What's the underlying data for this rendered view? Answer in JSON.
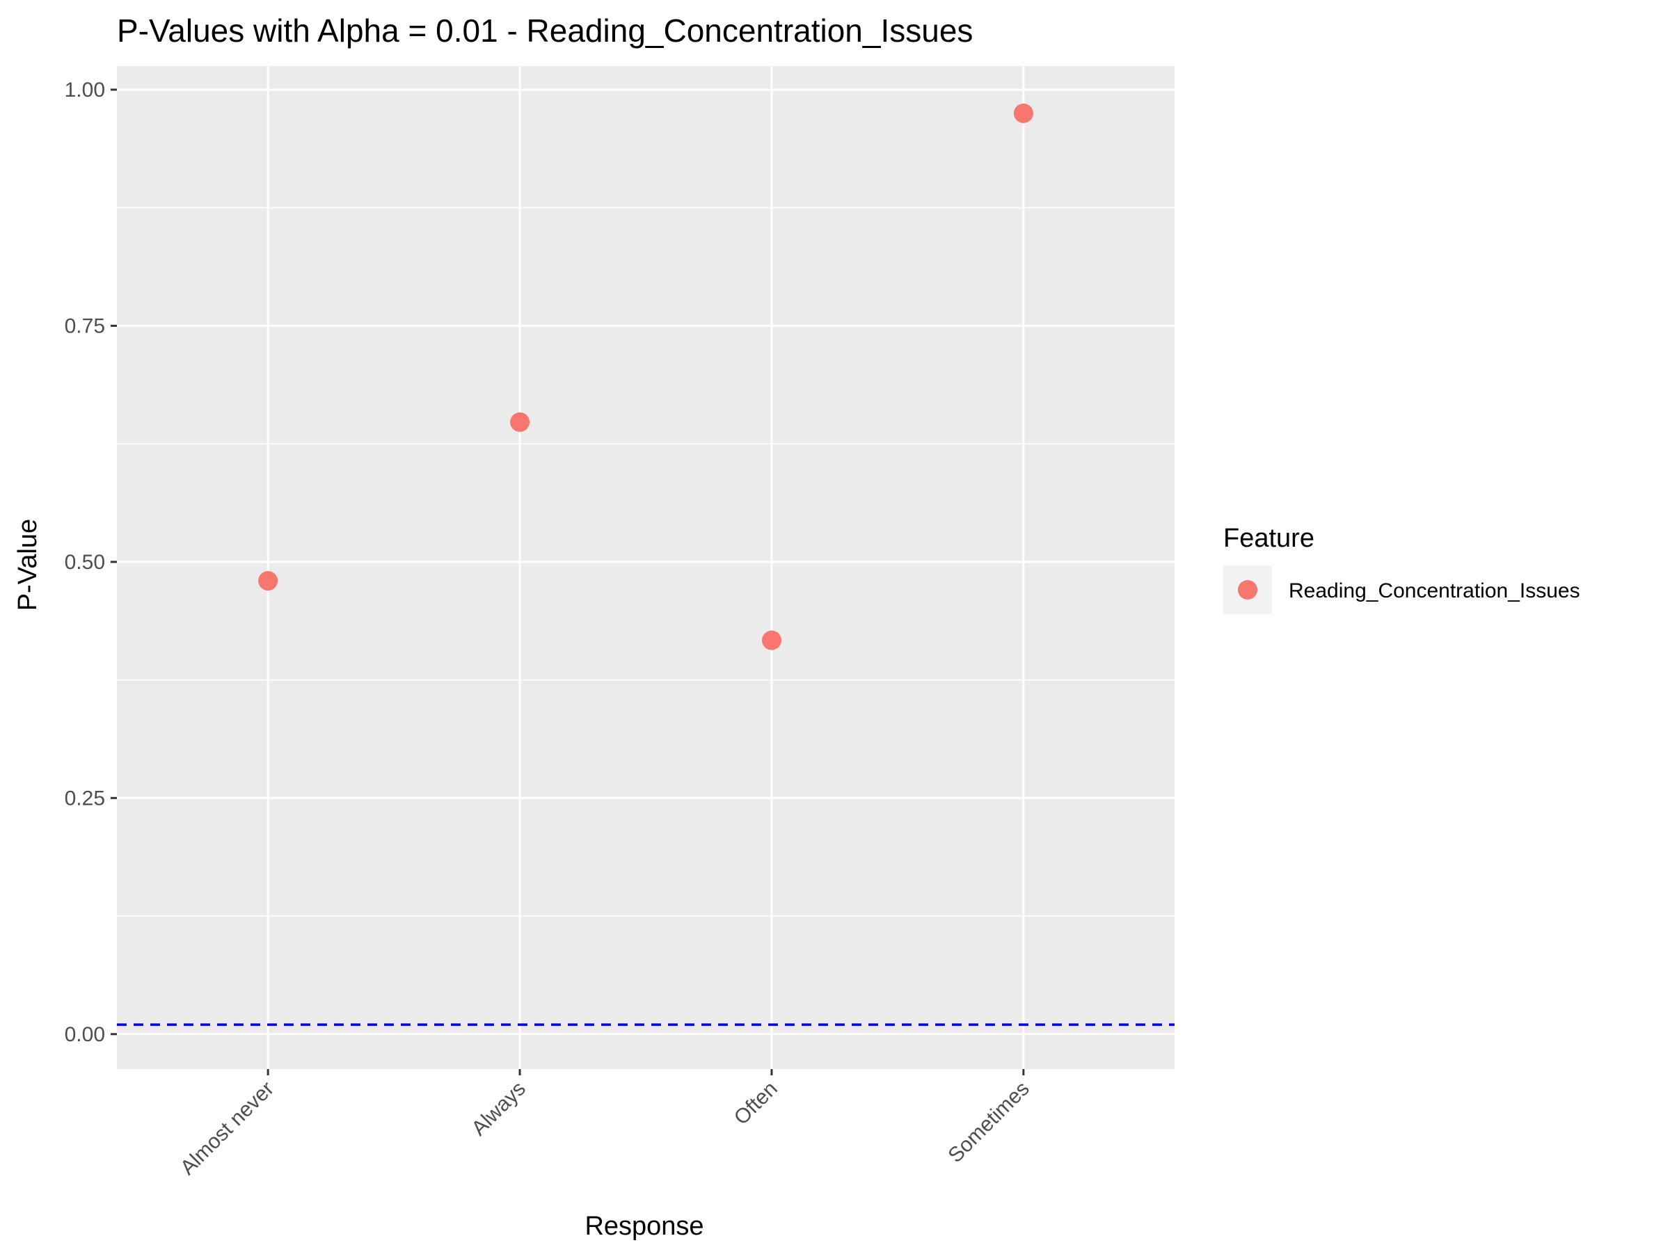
{
  "chart_data": {
    "type": "scatter",
    "title": "P-Values with Alpha = 0.01 - Reading_Concentration_Issues",
    "xlabel": "Response",
    "ylabel": "P-Value",
    "categories": [
      "Almost never",
      "Always",
      "Often",
      "Sometimes"
    ],
    "series": [
      {
        "name": "Reading_Concentration_Issues",
        "color": "#F8766D",
        "values": [
          0.48,
          0.648,
          0.417,
          0.975
        ]
      }
    ],
    "alpha_line": {
      "value": 0.01,
      "color": "#0000FF",
      "style": "dashed"
    },
    "ylim": [
      -0.037,
      1.025
    ],
    "yticks": [
      0.0,
      0.25,
      0.5,
      0.75,
      1.0
    ],
    "ytick_labels": [
      "0.00",
      "0.25",
      "0.50",
      "0.75",
      "1.00"
    ],
    "grid": true,
    "legend": {
      "title": "Feature",
      "placement": "right"
    },
    "panel_color": "#EBEBEB",
    "grid_color": "#FFFFFF"
  }
}
